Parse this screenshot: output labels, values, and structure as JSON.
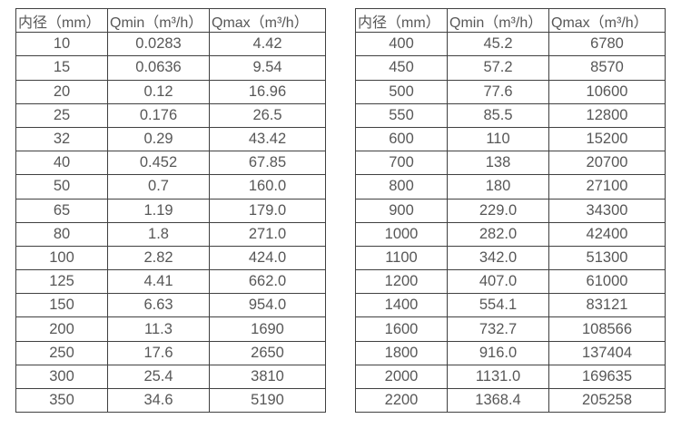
{
  "page": {
    "background_color": "#ffffff",
    "text_color": "#575757",
    "border_color": "#404040"
  },
  "left_table": {
    "headers": [
      "内径（mm）",
      "Qmin（m³/h）",
      "Qmax（m³/h）"
    ],
    "rows": [
      [
        "10",
        "0.0283",
        "4.42"
      ],
      [
        "15",
        "0.0636",
        "9.54"
      ],
      [
        "20",
        "0.12",
        "16.96"
      ],
      [
        "25",
        "0.176",
        "26.5"
      ],
      [
        "32",
        "0.29",
        "43.42"
      ],
      [
        "40",
        "0.452",
        "67.85"
      ],
      [
        "50",
        "0.7",
        "160.0"
      ],
      [
        "65",
        "1.19",
        "179.0"
      ],
      [
        "80",
        "1.8",
        "271.0"
      ],
      [
        "100",
        "2.82",
        "424.0"
      ],
      [
        "125",
        "4.41",
        "662.0"
      ],
      [
        "150",
        "6.63",
        "954.0"
      ],
      [
        "200",
        "11.3",
        "1690"
      ],
      [
        "250",
        "17.6",
        "2650"
      ],
      [
        "300",
        "25.4",
        "3810"
      ],
      [
        "350",
        "34.6",
        "5190"
      ]
    ]
  },
  "right_table": {
    "headers": [
      "内径（mm）",
      "Qmin（m³/h）",
      "Qmax（m³/h）"
    ],
    "rows": [
      [
        "400",
        "45.2",
        "6780"
      ],
      [
        "450",
        "57.2",
        "8570"
      ],
      [
        "500",
        "77.6",
        "10600"
      ],
      [
        "550",
        "85.5",
        "12800"
      ],
      [
        "600",
        "110",
        "15200"
      ],
      [
        "700",
        "138",
        "20700"
      ],
      [
        "800",
        "180",
        "27100"
      ],
      [
        "900",
        "229.0",
        "34300"
      ],
      [
        "1000",
        "282.0",
        "42400"
      ],
      [
        "1100",
        "342.0",
        "51300"
      ],
      [
        "1200",
        "407.0",
        "61000"
      ],
      [
        "1400",
        "554.1",
        "83121"
      ],
      [
        "1600",
        "732.7",
        "108566"
      ],
      [
        "1800",
        "916.0",
        "137404"
      ],
      [
        "2000",
        "1131.0",
        "169635"
      ],
      [
        "2200",
        "1368.4",
        "205258"
      ]
    ]
  },
  "chart_data": {
    "type": "table",
    "title": "",
    "tables": [
      {
        "columns": [
          "内径（mm）",
          "Qmin（m³/h）",
          "Qmax（m³/h）"
        ],
        "rows": [
          [
            10,
            0.0283,
            4.42
          ],
          [
            15,
            0.0636,
            9.54
          ],
          [
            20,
            0.12,
            16.96
          ],
          [
            25,
            0.176,
            26.5
          ],
          [
            32,
            0.29,
            43.42
          ],
          [
            40,
            0.452,
            67.85
          ],
          [
            50,
            0.7,
            160.0
          ],
          [
            65,
            1.19,
            179.0
          ],
          [
            80,
            1.8,
            271.0
          ],
          [
            100,
            2.82,
            424.0
          ],
          [
            125,
            4.41,
            662.0
          ],
          [
            150,
            6.63,
            954.0
          ],
          [
            200,
            11.3,
            1690
          ],
          [
            250,
            17.6,
            2650
          ],
          [
            300,
            25.4,
            3810
          ],
          [
            350,
            34.6,
            5190
          ]
        ]
      },
      {
        "columns": [
          "内径（mm）",
          "Qmin（m³/h）",
          "Qmax（m³/h）"
        ],
        "rows": [
          [
            400,
            45.2,
            6780
          ],
          [
            450,
            57.2,
            8570
          ],
          [
            500,
            77.6,
            10600
          ],
          [
            550,
            85.5,
            12800
          ],
          [
            600,
            110,
            15200
          ],
          [
            700,
            138,
            20700
          ],
          [
            800,
            180,
            27100
          ],
          [
            900,
            229.0,
            34300
          ],
          [
            1000,
            282.0,
            42400
          ],
          [
            1100,
            342.0,
            51300
          ],
          [
            1200,
            407.0,
            61000
          ],
          [
            1400,
            554.1,
            83121
          ],
          [
            1600,
            732.7,
            108566
          ],
          [
            1800,
            916.0,
            137404
          ],
          [
            2000,
            1131.0,
            169635
          ],
          [
            2200,
            1368.4,
            205258
          ]
        ]
      }
    ]
  }
}
